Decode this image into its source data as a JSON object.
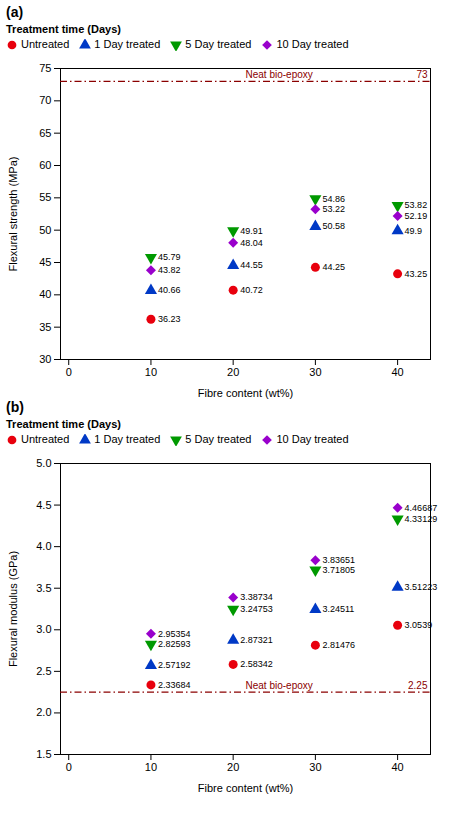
{
  "chart_data": [
    {
      "type": "scatter",
      "title": "(a)",
      "xlabel": "Fibre content (wt%)",
      "ylabel": "Flexural strength (MPa)",
      "xlim": [
        -1,
        44
      ],
      "ylim": [
        30,
        75
      ],
      "xticks": [
        0,
        10,
        20,
        30,
        40
      ],
      "yticks": [
        30,
        35,
        40,
        45,
        50,
        55,
        60,
        65,
        70,
        75
      ],
      "legend": "upper left",
      "legend_title": "Treatment time (Days)",
      "data_labels": true,
      "series": [
        {
          "name": "Untreated",
          "color": "#e8000d",
          "marker": "circle",
          "x": [
            10,
            20,
            30,
            40
          ],
          "values": [
            36.23,
            40.72,
            44.25,
            43.25
          ]
        },
        {
          "name": "1 Day treated",
          "color": "#0039c6",
          "marker": "triangle-up",
          "x": [
            10,
            20,
            30,
            40
          ],
          "values": [
            40.66,
            44.55,
            50.58,
            49.9
          ]
        },
        {
          "name": "5 Day treated",
          "color": "#009900",
          "marker": "triangle-down",
          "x": [
            10,
            20,
            30,
            40
          ],
          "values": [
            45.79,
            49.91,
            54.86,
            53.82
          ]
        },
        {
          "name": "10 Day treated",
          "color": "#9900cc",
          "marker": "diamond",
          "x": [
            10,
            20,
            30,
            40
          ],
          "values": [
            43.82,
            48.04,
            53.22,
            52.19
          ]
        }
      ],
      "annotations": [
        {
          "type": "hline",
          "value": 73,
          "text": "Neat bio-epoxy",
          "color": "#8b0000",
          "line_style": "dashdot"
        }
      ]
    },
    {
      "type": "scatter",
      "title": "(b)",
      "xlabel": "Fibre content (wt%)",
      "ylabel": "Flexural modulus (GPa)",
      "xlim": [
        -1,
        44
      ],
      "ylim": [
        1.5,
        5.0
      ],
      "xticks": [
        0,
        10,
        20,
        30,
        40
      ],
      "yticks": [
        1.5,
        {
          "value": 2.0,
          "label": "2.0"
        },
        2.5,
        {
          "value": 3.0,
          "label": "3.0"
        },
        3.5,
        {
          "value": 4.0,
          "label": "4.0"
        },
        4.5,
        {
          "value": 5.0,
          "label": "5.0"
        }
      ],
      "legend": "upper left",
      "legend_title": "Treatment time (Days)",
      "data_labels": true,
      "series": [
        {
          "name": "Untreated",
          "color": "#e8000d",
          "marker": "circle",
          "x": [
            10,
            20,
            30,
            40
          ],
          "values": [
            2.33684,
            2.58342,
            2.81476,
            3.0539
          ]
        },
        {
          "name": "1 Day treated",
          "color": "#0039c6",
          "marker": "triangle-up",
          "x": [
            10,
            20,
            30,
            40
          ],
          "values": [
            2.57192,
            2.87321,
            3.24511,
            3.51223
          ]
        },
        {
          "name": "5 Day treated",
          "color": "#009900",
          "marker": "triangle-down",
          "x": [
            10,
            20,
            30,
            40
          ],
          "values": [
            2.82593,
            3.24753,
            3.71805,
            4.33129
          ]
        },
        {
          "name": "10 Day treated",
          "color": "#9900cc",
          "marker": "diamond",
          "x": [
            10,
            20,
            30,
            40
          ],
          "values": [
            2.95354,
            3.38734,
            3.83651,
            4.46687
          ]
        }
      ],
      "annotations": [
        {
          "type": "hline",
          "value": 2.25,
          "text": "Neat bio-epoxy",
          "color": "#8b0000",
          "line_style": "dashdot"
        }
      ]
    }
  ]
}
